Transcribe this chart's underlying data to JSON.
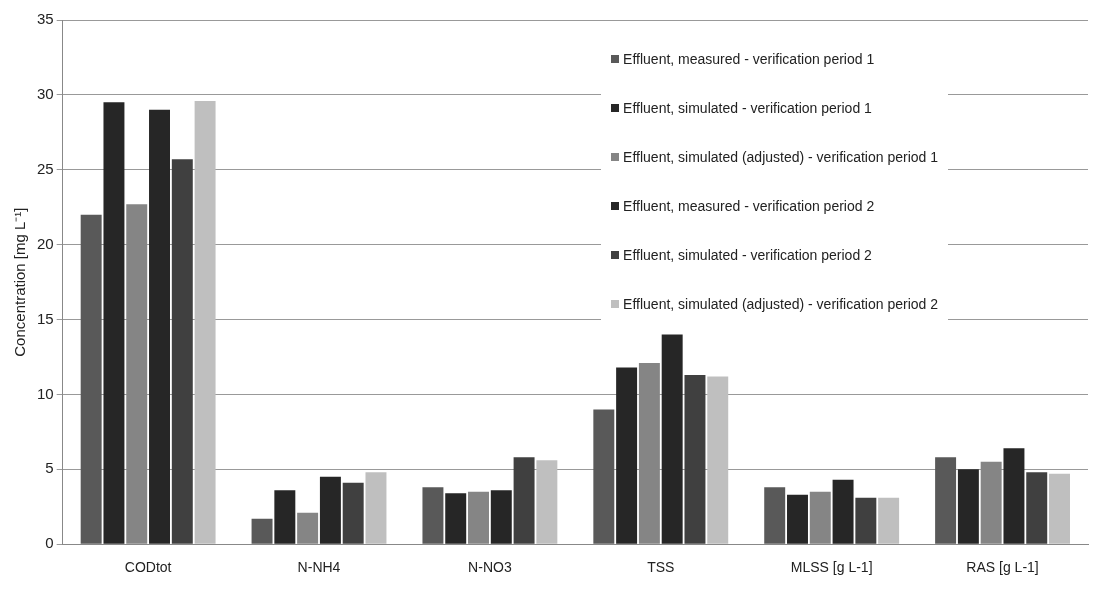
{
  "chart_data": {
    "type": "bar",
    "ylabel": "Concentration [mg L⁻¹]",
    "categories": [
      "CODtot",
      "N-NH4",
      "N-NO3",
      "TSS",
      "MLSS [g L-1]",
      "RAS [g L-1]"
    ],
    "series": [
      {
        "name": "Effluent, measured - verification period 1",
        "color": "#595959",
        "values": [
          22.0,
          1.7,
          3.8,
          9.0,
          3.8,
          5.8
        ]
      },
      {
        "name": "Effluent, simulated - verification period 1",
        "color": "#262626",
        "values": [
          29.5,
          3.6,
          3.4,
          11.8,
          3.3,
          5.0
        ]
      },
      {
        "name": "Effluent, simulated (adjusted) - verification period 1",
        "color": "#858585",
        "values": [
          22.7,
          2.1,
          3.5,
          12.1,
          3.5,
          5.5
        ]
      },
      {
        "name": "Effluent, measured - verification period 2",
        "color": "#262626",
        "values": [
          29.0,
          4.5,
          3.6,
          14.0,
          4.3,
          6.4
        ]
      },
      {
        "name": "Effluent, simulated - verification period 2",
        "color": "#404040",
        "values": [
          25.7,
          4.1,
          5.8,
          11.3,
          3.1,
          4.8
        ]
      },
      {
        "name": "Effluent, simulated (adjusted) - verification period 2",
        "color": "#bfbfbf",
        "values": [
          29.6,
          4.8,
          5.6,
          11.2,
          3.1,
          4.7
        ]
      }
    ],
    "ylim": [
      0,
      35
    ],
    "yticks": [
      0,
      5,
      10,
      15,
      20,
      25,
      30,
      35
    ],
    "grid": "y",
    "legend": "top right"
  }
}
